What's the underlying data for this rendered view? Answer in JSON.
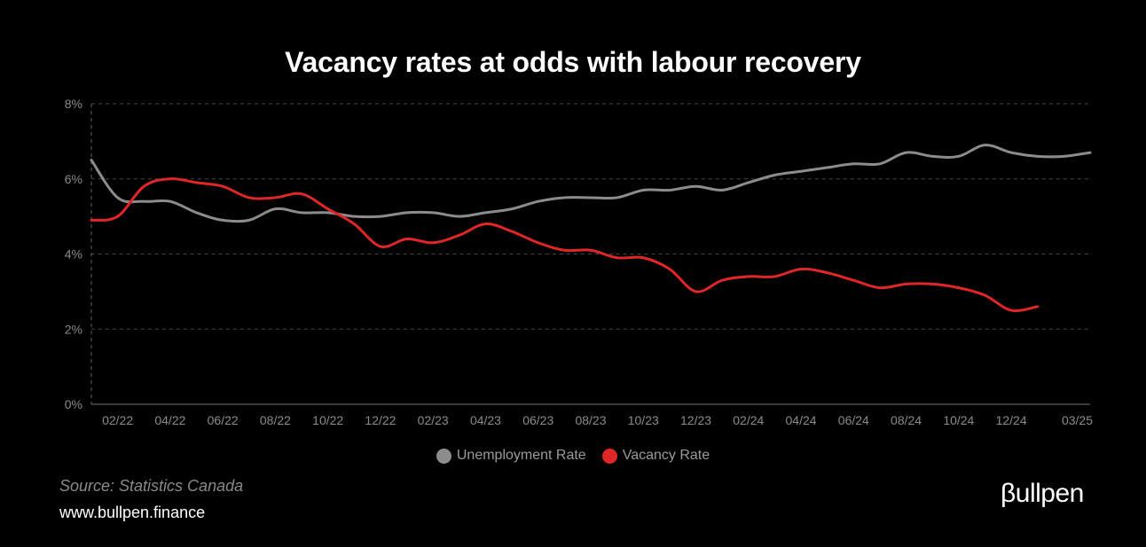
{
  "title": "Vacancy rates at odds with labour recovery",
  "source_text": "Source: Statistics Canada",
  "website_text": "www.bullpen.finance",
  "brand_text": "βullpen",
  "colors": {
    "background": "#000000",
    "unemployment": "#8c8c8c",
    "vacancy": "#e02626",
    "grid": "#444444"
  },
  "chart_data": {
    "type": "line",
    "title": "Vacancy rates at odds with labour recovery",
    "xlabel": "",
    "ylabel": "",
    "ylim": [
      0,
      8
    ],
    "yticks": [
      "0%",
      "2%",
      "4%",
      "6%",
      "8%"
    ],
    "xtick_labels": [
      "02/22",
      "04/22",
      "06/22",
      "08/22",
      "10/22",
      "12/22",
      "02/23",
      "04/23",
      "06/23",
      "08/23",
      "10/23",
      "12/23",
      "02/24",
      "04/24",
      "06/24",
      "08/24",
      "10/24",
      "12/24",
      "03/25"
    ],
    "x": [
      "01/22",
      "02/22",
      "03/22",
      "04/22",
      "05/22",
      "06/22",
      "07/22",
      "08/22",
      "09/22",
      "10/22",
      "11/22",
      "12/22",
      "01/23",
      "02/23",
      "03/23",
      "04/23",
      "05/23",
      "06/23",
      "07/23",
      "08/23",
      "09/23",
      "10/23",
      "11/23",
      "12/23",
      "01/24",
      "02/24",
      "03/24",
      "04/24",
      "05/24",
      "06/24",
      "07/24",
      "08/24",
      "09/24",
      "10/24",
      "11/24",
      "12/24",
      "01/25",
      "02/25",
      "03/25"
    ],
    "grid": true,
    "legend_position": "bottom",
    "series": [
      {
        "name": "Unemployment Rate",
        "color": "#8c8c8c",
        "values": [
          6.5,
          5.5,
          5.4,
          5.4,
          5.1,
          4.9,
          4.9,
          5.2,
          5.1,
          5.1,
          5.0,
          5.0,
          5.1,
          5.1,
          5.0,
          5.1,
          5.2,
          5.4,
          5.5,
          5.5,
          5.5,
          5.7,
          5.7,
          5.8,
          5.7,
          5.9,
          6.1,
          6.2,
          6.3,
          6.4,
          6.4,
          6.7,
          6.6,
          6.6,
          6.9,
          6.7,
          6.6,
          6.6,
          6.7
        ]
      },
      {
        "name": "Vacancy Rate",
        "color": "#e02626",
        "values": [
          4.9,
          5.0,
          5.8,
          6.0,
          5.9,
          5.8,
          5.5,
          5.5,
          5.6,
          5.2,
          4.8,
          4.2,
          4.4,
          4.3,
          4.5,
          4.8,
          4.6,
          4.3,
          4.1,
          4.1,
          3.9,
          3.9,
          3.6,
          3.0,
          3.3,
          3.4,
          3.4,
          3.6,
          3.5,
          3.3,
          3.1,
          3.2,
          3.2,
          3.1,
          2.9,
          2.5,
          2.6,
          null,
          null
        ]
      }
    ]
  }
}
